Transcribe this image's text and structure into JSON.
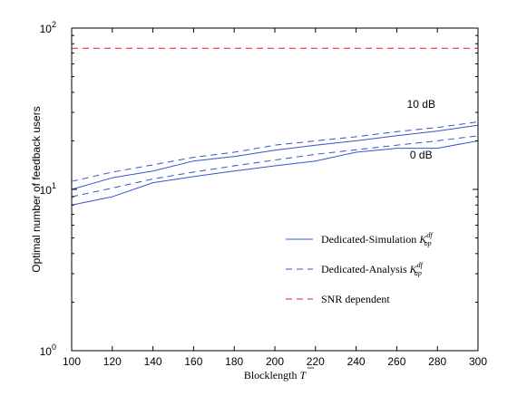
{
  "chart_data": {
    "type": "line",
    "title": "",
    "xlabel": "Blocklength $\\bar{T}$",
    "xlabel_text": "Blocklength",
    "xlabel_symbol": "T",
    "ylabel": "Optimal number of feedback users",
    "xlim": [
      100,
      300
    ],
    "ylim": [
      1,
      100
    ],
    "yscale": "log",
    "grid": false,
    "legend_position": "right-middle",
    "x_ticks": [
      100,
      120,
      140,
      160,
      180,
      200,
      220,
      240,
      260,
      280,
      300
    ],
    "x_tick_labels": [
      "100",
      "120",
      "140",
      "160",
      "180",
      "200",
      "220",
      "240",
      "260",
      "280",
      "300"
    ],
    "y_ticks": [
      1,
      10,
      100
    ],
    "y_tick_labels": [
      {
        "base": "10",
        "exp": "0"
      },
      {
        "base": "10",
        "exp": "1"
      },
      {
        "base": "10",
        "exp": "2"
      }
    ],
    "x": [
      100,
      120,
      140,
      160,
      180,
      200,
      220,
      240,
      260,
      280,
      300
    ],
    "series": [
      {
        "name": "Dedicated-Simulation $K_{op}^{df}$",
        "legend_text": "Dedicated-Simulation",
        "legend_symbol": "K",
        "legend_sub": "op",
        "legend_sup": "df",
        "style": "solid",
        "color": "#3355cc",
        "show_in_legend": true,
        "values": [
          10,
          11.8,
          13.0,
          15.0,
          16.0,
          17.5,
          18.8,
          20.0,
          21.5,
          23.0,
          25.0
        ]
      },
      {
        "name": "",
        "style": "solid",
        "color": "#3355cc",
        "show_in_legend": false,
        "values": [
          8,
          9.0,
          11.0,
          12.0,
          13.0,
          14.0,
          15.0,
          17.0,
          18.0,
          18.0,
          20.0
        ]
      },
      {
        "name": "Dedicated-Analysis $K_{ap}^{df}$",
        "legend_text": "Dedicated-Analysis",
        "legend_symbol": "K",
        "legend_sub": "ap",
        "legend_sup": "df",
        "style": "dashed",
        "color": "#3355cc",
        "show_in_legend": true,
        "values": [
          11.2,
          12.8,
          14.2,
          15.8,
          17.0,
          18.8,
          20.0,
          21.2,
          22.8,
          24.2,
          26.2
        ]
      },
      {
        "name": "",
        "style": "dashed",
        "color": "#3355cc",
        "show_in_legend": false,
        "values": [
          9.0,
          10.2,
          11.6,
          12.8,
          14.0,
          15.2,
          16.5,
          17.6,
          18.8,
          20.0,
          21.5
        ]
      },
      {
        "name": "SNR dependent",
        "legend_text": "SNR dependent",
        "style": "dashed",
        "color": "#dd2222",
        "show_in_legend": true,
        "values": [
          75,
          75,
          75,
          75,
          75,
          75,
          75,
          75,
          75,
          75,
          75
        ]
      }
    ],
    "annotations": [
      {
        "text": "10 dB",
        "x": 272,
        "y": 32
      },
      {
        "text": "0 dB",
        "x": 272,
        "y": 15.5
      }
    ]
  }
}
